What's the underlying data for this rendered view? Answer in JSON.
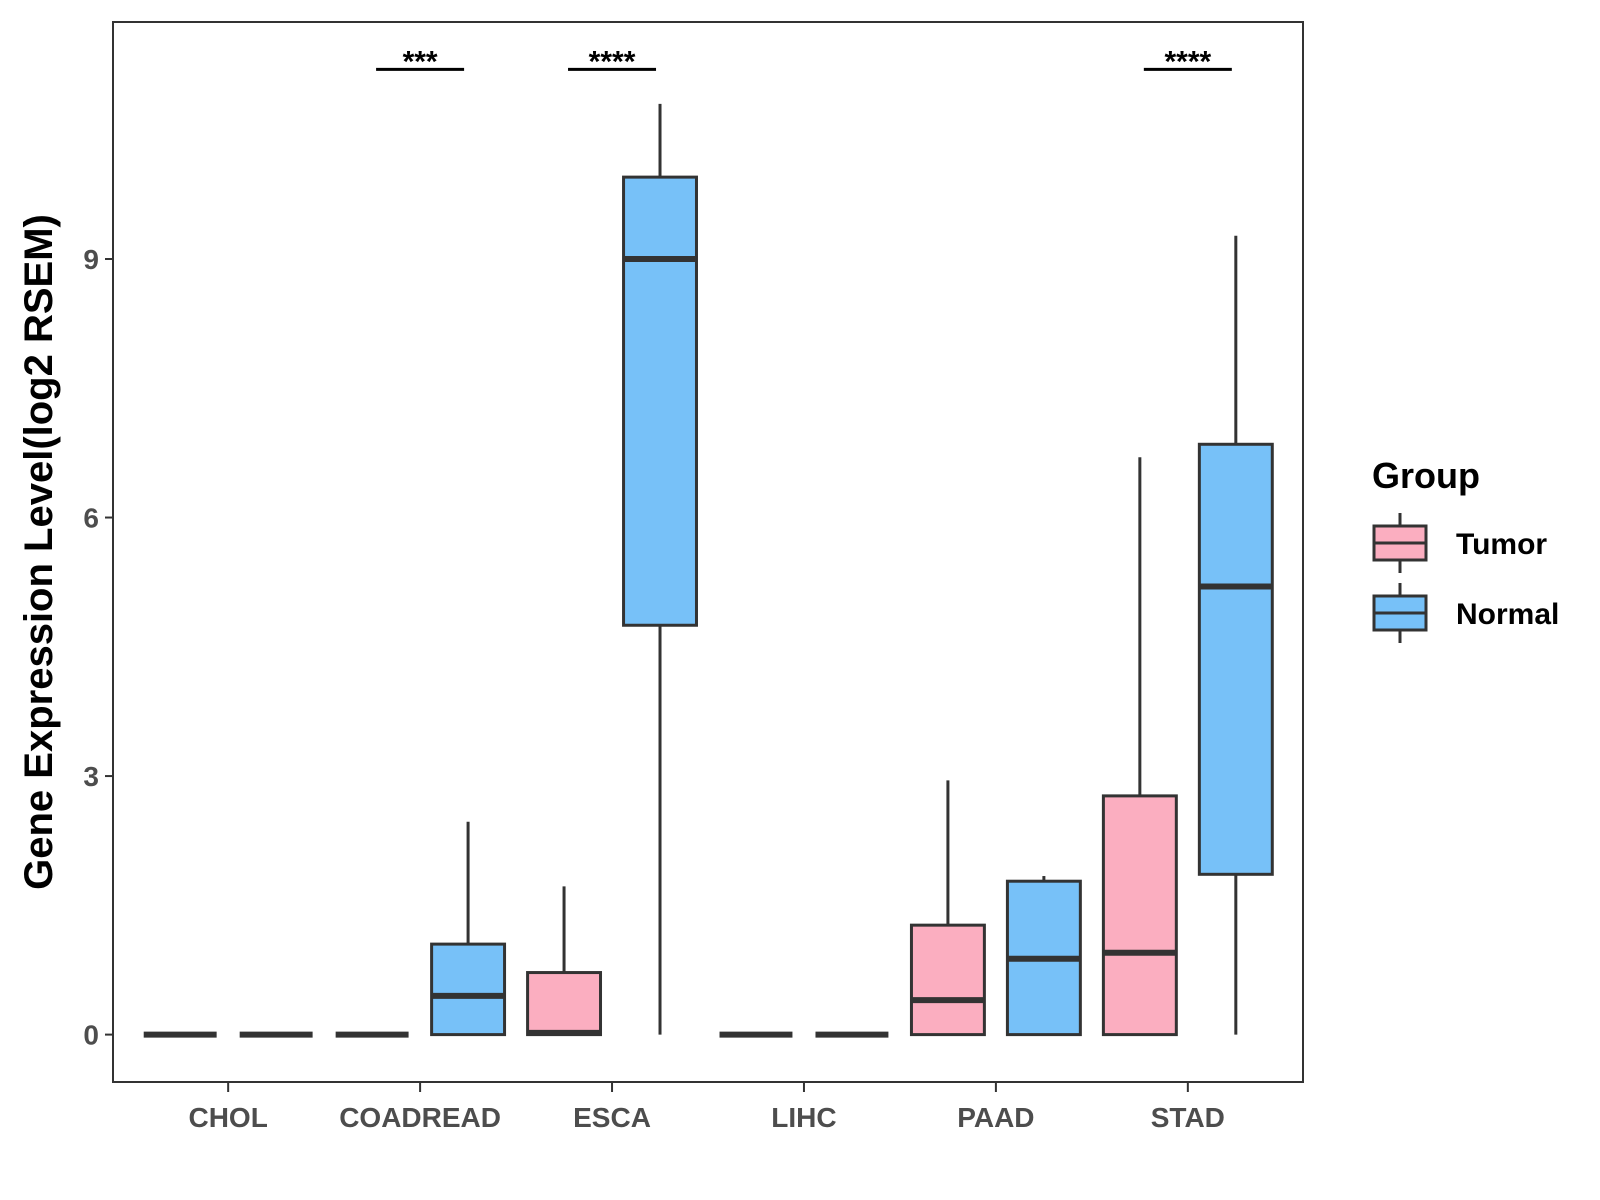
{
  "chart_data": {
    "type": "boxplot",
    "title": "",
    "xlabel": "",
    "ylabel": "Gene Expression Level(log2 RSEM)",
    "ylim": [
      -0.55,
      11.75
    ],
    "yticks": [
      0,
      3,
      6,
      9
    ],
    "categories": [
      "CHOL",
      "COADREAD",
      "ESCA",
      "LIHC",
      "PAAD",
      "STAD"
    ],
    "legend": {
      "title": "Group",
      "position": "right",
      "entries": [
        {
          "name": "Tumor",
          "color": "#FBAEC0"
        },
        {
          "name": "Normal",
          "color": "#77C1F8"
        }
      ]
    },
    "series": [
      {
        "name": "Tumor",
        "color": "#FBAEC0",
        "boxes": [
          {
            "category": "CHOL",
            "min": 0,
            "q1": 0,
            "median": 0,
            "q3": 0,
            "max": 0
          },
          {
            "category": "COADREAD",
            "min": 0,
            "q1": 0,
            "median": 0,
            "q3": 0,
            "max": 0
          },
          {
            "category": "ESCA",
            "min": 0,
            "q1": 0,
            "median": 0.02,
            "q3": 0.72,
            "max": 1.72
          },
          {
            "category": "LIHC",
            "min": 0,
            "q1": 0,
            "median": 0,
            "q3": 0,
            "max": 0
          },
          {
            "category": "PAAD",
            "min": 0,
            "q1": 0,
            "median": 0.4,
            "q3": 1.27,
            "max": 2.95
          },
          {
            "category": "STAD",
            "min": 0,
            "q1": 0,
            "median": 0.95,
            "q3": 2.77,
            "max": 6.7
          }
        ]
      },
      {
        "name": "Normal",
        "color": "#77C1F8",
        "boxes": [
          {
            "category": "CHOL",
            "min": 0,
            "q1": 0,
            "median": 0,
            "q3": 0,
            "max": 0
          },
          {
            "category": "COADREAD",
            "min": 0,
            "q1": 0,
            "median": 0.45,
            "q3": 1.05,
            "max": 2.47
          },
          {
            "category": "ESCA",
            "min": 0,
            "q1": 4.75,
            "median": 9.0,
            "q3": 9.95,
            "max": 10.8
          },
          {
            "category": "LIHC",
            "min": 0,
            "q1": 0,
            "median": 0,
            "q3": 0,
            "max": 0
          },
          {
            "category": "PAAD",
            "min": 0,
            "q1": 0,
            "median": 0.88,
            "q3": 1.78,
            "max": 1.84
          },
          {
            "category": "STAD",
            "min": 0,
            "q1": 1.86,
            "median": 5.2,
            "q3": 6.85,
            "max": 9.27
          }
        ]
      }
    ],
    "significance": [
      {
        "category": "COADREAD",
        "label": "***",
        "y": 11.2
      },
      {
        "category": "ESCA",
        "label": "****",
        "y": 11.2
      },
      {
        "category": "STAD",
        "label": "****",
        "y": 11.2
      }
    ]
  }
}
